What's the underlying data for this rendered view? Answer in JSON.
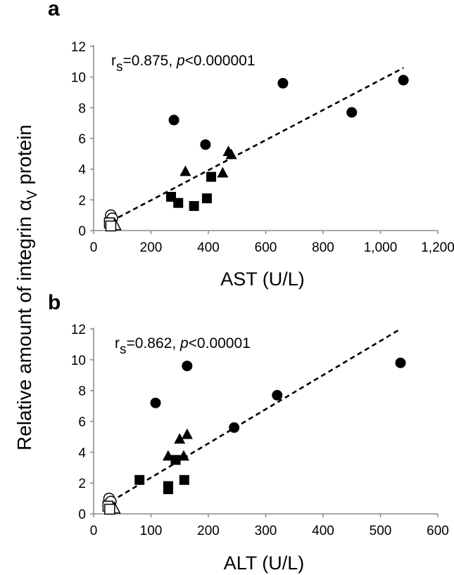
{
  "shared_ylabel": {
    "prefix": "Relative amount of integrin ",
    "alpha": "α",
    "sub": "V",
    "suffix": " protein"
  },
  "chart_data": [
    {
      "panel": "a",
      "type": "scatter",
      "xlabel": "AST (U/L)",
      "ylabel": "Relative amount of integrin αV protein",
      "xlim": [
        0,
        1200
      ],
      "ylim": [
        0,
        12
      ],
      "xticks": [
        0,
        200,
        400,
        600,
        800,
        1000,
        1200
      ],
      "xtick_labels": [
        "0",
        "200",
        "400",
        "600",
        "800",
        "1,000",
        "1,200"
      ],
      "yticks": [
        0,
        2,
        4,
        6,
        8,
        10,
        12
      ],
      "ytick_labels": [
        "0",
        "2",
        "4",
        "6",
        "8",
        "10",
        "12"
      ],
      "annotation": {
        "r": "r",
        "sub": "s",
        "rest": "=0.875, ",
        "p": "p",
        "rest2": "<0.000001"
      },
      "trendline": {
        "style": "dashed",
        "x": [
          60,
          1080
        ],
        "y": [
          0.6,
          10.6
        ]
      },
      "series": [
        {
          "name": "circle-filled",
          "marker": "circle",
          "filled": true,
          "x": [
            280,
            390,
            660,
            900,
            1080
          ],
          "y": [
            7.2,
            5.6,
            9.6,
            7.7,
            9.8
          ]
        },
        {
          "name": "triangle-filled",
          "marker": "triangle",
          "filled": true,
          "x": [
            320,
            450,
            470,
            480
          ],
          "y": [
            3.9,
            3.8,
            5.2,
            5.0
          ]
        },
        {
          "name": "square-filled",
          "marker": "square",
          "filled": true,
          "x": [
            270,
            295,
            350,
            395,
            410
          ],
          "y": [
            2.2,
            1.8,
            1.6,
            2.1,
            3.5
          ]
        },
        {
          "name": "circle-open",
          "marker": "circle",
          "filled": false,
          "x": [
            60,
            65
          ],
          "y": [
            1.0,
            0.8
          ]
        },
        {
          "name": "triangle-open",
          "marker": "triangle",
          "filled": false,
          "x": [
            75
          ],
          "y": [
            0.4
          ]
        },
        {
          "name": "square-open",
          "marker": "square",
          "filled": false,
          "x": [
            55,
            60
          ],
          "y": [
            0.5,
            0.3
          ]
        }
      ]
    },
    {
      "panel": "b",
      "type": "scatter",
      "xlabel": "ALT (U/L)",
      "ylabel": "Relative amount of integrin αV protein",
      "xlim": [
        0,
        600
      ],
      "ylim": [
        0,
        12
      ],
      "xticks": [
        0,
        100,
        200,
        300,
        400,
        500,
        600
      ],
      "xtick_labels": [
        "0",
        "100",
        "200",
        "300",
        "400",
        "500",
        "600"
      ],
      "yticks": [
        0,
        2,
        4,
        6,
        8,
        10,
        12
      ],
      "ytick_labels": [
        "0",
        "2",
        "4",
        "6",
        "8",
        "10",
        "12"
      ],
      "annotation": {
        "r": "r",
        "sub": "s",
        "rest": "=0.862, ",
        "p": "p",
        "rest2": "<0.00001"
      },
      "trendline": {
        "style": "dashed",
        "x": [
          30,
          535
        ],
        "y": [
          0.8,
          12.0
        ]
      },
      "series": [
        {
          "name": "circle-filled",
          "marker": "circle",
          "filled": true,
          "x": [
            108,
            163,
            245,
            320,
            535
          ],
          "y": [
            7.2,
            9.6,
            5.6,
            7.7,
            9.8
          ]
        },
        {
          "name": "triangle-filled",
          "marker": "triangle",
          "filled": true,
          "x": [
            130,
            150,
            157,
            163
          ],
          "y": [
            3.8,
            4.9,
            3.8,
            5.2
          ]
        },
        {
          "name": "square-filled",
          "marker": "square",
          "filled": true,
          "x": [
            80,
            130,
            130,
            143,
            158
          ],
          "y": [
            2.2,
            1.8,
            1.6,
            3.5,
            2.2
          ]
        },
        {
          "name": "circle-open",
          "marker": "circle",
          "filled": false,
          "x": [
            27,
            30
          ],
          "y": [
            1.0,
            0.8
          ]
        },
        {
          "name": "triangle-open",
          "marker": "triangle",
          "filled": false,
          "x": [
            36
          ],
          "y": [
            0.4
          ]
        },
        {
          "name": "square-open",
          "marker": "square",
          "filled": false,
          "x": [
            25,
            28
          ],
          "y": [
            0.5,
            0.3
          ]
        }
      ]
    }
  ]
}
